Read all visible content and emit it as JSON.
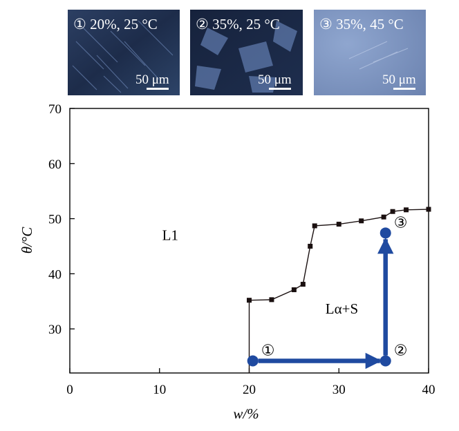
{
  "micrographs": [
    {
      "caption": "① 20%, 25 °C",
      "scale": "50 μm"
    },
    {
      "caption": "② 35%, 25 °C",
      "scale": "50 μm"
    },
    {
      "caption": "③ 35%, 45 °C",
      "scale": "50 μm"
    }
  ],
  "chart_data": {
    "type": "line",
    "xlabel": "w/%",
    "ylabel": "θ/°C",
    "xlim": [
      0,
      40
    ],
    "ylim": [
      22,
      70
    ],
    "xticks": [
      "0",
      "10",
      "20",
      "30",
      "40"
    ],
    "yticks": [
      "30",
      "40",
      "50",
      "60",
      "70"
    ],
    "grid": false,
    "series": [
      {
        "type": "line",
        "x": [
          20.0,
          22.5,
          25.0,
          26.0,
          26.8,
          27.3,
          30.0,
          32.5,
          35.0,
          36.0,
          37.5,
          40.0
        ],
        "y": [
          35.2,
          35.3,
          37.1,
          38.1,
          45.0,
          48.7,
          49.0,
          49.6,
          50.3,
          51.3,
          51.6,
          51.7
        ],
        "color": "#1a1010"
      }
    ],
    "region_labels": [
      {
        "text": "L1",
        "x": 10.3,
        "y": 46.1
      },
      {
        "text": "Lα+S",
        "x": 28.5,
        "y": 32.8
      }
    ],
    "states": [
      {
        "label": "①",
        "x": 20.4,
        "y": 24.2
      },
      {
        "label": "②",
        "x": 35.2,
        "y": 24.2
      },
      {
        "label": "③",
        "x": 35.2,
        "y": 47.4
      }
    ],
    "path_color": "#1f4aa0"
  }
}
